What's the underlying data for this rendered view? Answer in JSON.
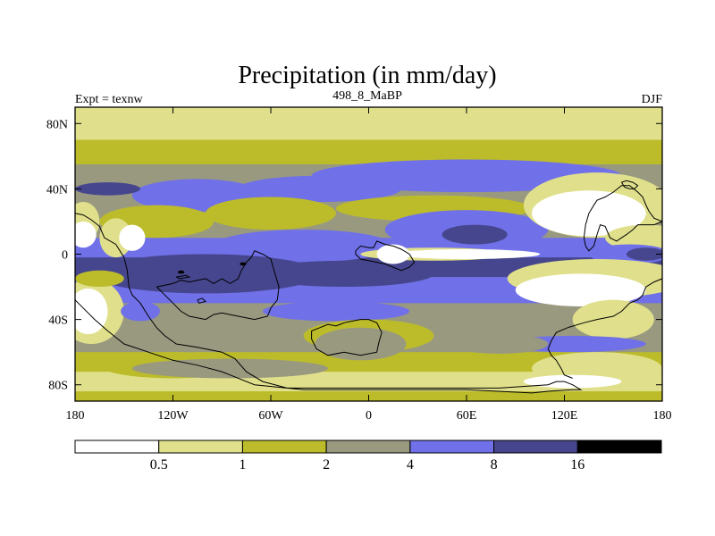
{
  "chart_data": {
    "type": "heatmap",
    "title": "Precipitation (in mm/day)",
    "subtitle_left": "Expt = texnw",
    "subtitle_center": "498_8_MaBP",
    "subtitle_right": "DJF",
    "units": "mm/day",
    "xlim": [
      -180,
      180
    ],
    "ylim": [
      -90,
      90
    ],
    "x_ticks": [
      {
        "value": -180,
        "label": "180"
      },
      {
        "value": -120,
        "label": "120W"
      },
      {
        "value": -60,
        "label": "60W"
      },
      {
        "value": 0,
        "label": "0"
      },
      {
        "value": 60,
        "label": "60E"
      },
      {
        "value": 120,
        "label": "120E"
      },
      {
        "value": 180,
        "label": "180"
      }
    ],
    "y_ticks": [
      {
        "value": 80,
        "label": "80N"
      },
      {
        "value": 40,
        "label": "40N"
      },
      {
        "value": 0,
        "label": "0"
      },
      {
        "value": -40,
        "label": "40S"
      },
      {
        "value": -80,
        "label": "80S"
      }
    ],
    "colorbar": {
      "levels": [
        "0.5",
        "1",
        "2",
        "4",
        "8",
        "16"
      ],
      "colors": [
        "#ffffff",
        "#e0e08c",
        "#bcbc2a",
        "#999980",
        "#7070e8",
        "#46468e",
        "#000000"
      ]
    },
    "bands": [
      {
        "lat_min": 76,
        "lat_max": 90,
        "level": 1
      },
      {
        "lat_min": 70,
        "lat_max": 76,
        "level": 1
      },
      {
        "lat_min": 55,
        "lat_max": 70,
        "level": 2
      },
      {
        "lat_min": 46,
        "lat_max": 55,
        "level": 3
      },
      {
        "lat_min": 26,
        "lat_max": 46,
        "level": 3
      },
      {
        "lat_min": 20,
        "lat_max": 26,
        "level": 3
      },
      {
        "lat_min": 10,
        "lat_max": 20,
        "level": 3
      },
      {
        "lat_min": -2,
        "lat_max": 10,
        "level": 4
      },
      {
        "lat_min": -14,
        "lat_max": -2,
        "level": 5
      },
      {
        "lat_min": -30,
        "lat_max": -14,
        "level": 4
      },
      {
        "lat_min": -40,
        "lat_max": -30,
        "level": 3
      },
      {
        "lat_min": -60,
        "lat_max": -40,
        "level": 3
      },
      {
        "lat_min": -72,
        "lat_max": -60,
        "level": 2
      },
      {
        "lat_min": -84,
        "lat_max": -72,
        "level": 1
      },
      {
        "lat_min": -90,
        "lat_max": -84,
        "level": 2
      }
    ],
    "blobs": [
      {
        "lon": -105,
        "lat": 36,
        "rx": 40,
        "ry": 10,
        "level": 4
      },
      {
        "lon": -160,
        "lat": 40,
        "rx": 20,
        "ry": 4,
        "level": 5
      },
      {
        "lon": -30,
        "lat": 40,
        "rx": 50,
        "ry": 8,
        "level": 4
      },
      {
        "lon": 60,
        "lat": 48,
        "rx": 95,
        "ry": 10,
        "level": 4
      },
      {
        "lon": -130,
        "lat": 20,
        "rx": 35,
        "ry": 10,
        "level": 2
      },
      {
        "lon": -60,
        "lat": 25,
        "rx": 40,
        "ry": 10,
        "level": 2
      },
      {
        "lon": 40,
        "lat": 28,
        "rx": 60,
        "ry": 8,
        "level": 2
      },
      {
        "lon": -40,
        "lat": 5,
        "rx": 55,
        "ry": 10,
        "level": 4
      },
      {
        "lon": 60,
        "lat": 15,
        "rx": 50,
        "ry": 12,
        "level": 4
      },
      {
        "lon": 140,
        "lat": 30,
        "rx": 45,
        "ry": 20,
        "level": 1
      },
      {
        "lon": 135,
        "lat": 25,
        "rx": 35,
        "ry": 14,
        "level": 0
      },
      {
        "lon": 170,
        "lat": 10,
        "rx": 25,
        "ry": 8,
        "level": 1
      },
      {
        "lon": -175,
        "lat": 20,
        "rx": 10,
        "ry": 12,
        "level": 1
      },
      {
        "lon": -155,
        "lat": 10,
        "rx": 10,
        "ry": 12,
        "level": 1
      },
      {
        "lon": -145,
        "lat": 10,
        "rx": 8,
        "ry": 8,
        "level": 0
      },
      {
        "lon": -175,
        "lat": 12,
        "rx": 8,
        "ry": 8,
        "level": 0
      },
      {
        "lon": 65,
        "lat": 12,
        "rx": 20,
        "ry": 6,
        "level": 5
      },
      {
        "lon": 160,
        "lat": 0,
        "rx": 25,
        "ry": 6,
        "level": 4
      },
      {
        "lon": 170,
        "lat": 0,
        "rx": 12,
        "ry": 4,
        "level": 5
      },
      {
        "lon": -100,
        "lat": -12,
        "rx": 70,
        "ry": 12,
        "level": 5
      },
      {
        "lon": -15,
        "lat": -12,
        "rx": 55,
        "ry": 8,
        "level": 5
      },
      {
        "lon": 40,
        "lat": 0,
        "rx": 45,
        "ry": 4,
        "level": 1
      },
      {
        "lon": 60,
        "lat": 0,
        "rx": 45,
        "ry": 3,
        "level": 0
      },
      {
        "lon": 15,
        "lat": 0,
        "rx": 10,
        "ry": 6,
        "level": 0
      },
      {
        "lon": 140,
        "lat": -15,
        "rx": 55,
        "ry": 12,
        "level": 1
      },
      {
        "lon": 130,
        "lat": -22,
        "rx": 40,
        "ry": 10,
        "level": 0
      },
      {
        "lon": 150,
        "lat": -40,
        "rx": 25,
        "ry": 12,
        "level": 1
      },
      {
        "lon": 125,
        "lat": -55,
        "rx": 45,
        "ry": 5,
        "level": 4
      },
      {
        "lon": 140,
        "lat": -70,
        "rx": 40,
        "ry": 10,
        "level": 1
      },
      {
        "lon": -170,
        "lat": -35,
        "rx": 20,
        "ry": 20,
        "level": 1
      },
      {
        "lon": -172,
        "lat": -35,
        "rx": 12,
        "ry": 14,
        "level": 0
      },
      {
        "lon": -165,
        "lat": -15,
        "rx": 15,
        "ry": 5,
        "level": 2
      },
      {
        "lon": -140,
        "lat": -35,
        "rx": 12,
        "ry": 6,
        "level": 4
      },
      {
        "lon": -110,
        "lat": -50,
        "rx": 25,
        "ry": 10,
        "level": 3
      },
      {
        "lon": -120,
        "lat": -68,
        "rx": 45,
        "ry": 8,
        "level": 2
      },
      {
        "lon": -20,
        "lat": -35,
        "rx": 45,
        "ry": 6,
        "level": 4
      },
      {
        "lon": 0,
        "lat": -50,
        "rx": 40,
        "ry": 10,
        "level": 2
      },
      {
        "lon": -5,
        "lat": -55,
        "rx": 28,
        "ry": 10,
        "level": 3
      },
      {
        "lon": -85,
        "lat": -70,
        "rx": 60,
        "ry": 6,
        "level": 3
      },
      {
        "lon": 80,
        "lat": -55,
        "rx": 30,
        "ry": 6,
        "level": 3
      },
      {
        "lon": 125,
        "lat": -78,
        "rx": 30,
        "ry": 4,
        "level": 0
      },
      {
        "lon": -115,
        "lat": -11,
        "rx": 2,
        "ry": 1,
        "level": 6
      },
      {
        "lon": -77,
        "lat": -6,
        "rx": 2,
        "ry": 1,
        "level": 6
      }
    ],
    "coastlines": [
      [
        [
          -180,
          25
        ],
        [
          -175,
          24
        ],
        [
          -170,
          21
        ],
        [
          -165,
          17
        ],
        [
          -162,
          10
        ],
        [
          -155,
          6
        ],
        [
          -150,
          -2
        ],
        [
          -148,
          -10
        ],
        [
          -147,
          -20
        ],
        [
          -145,
          -25
        ],
        [
          -140,
          -30
        ],
        [
          -135,
          -38
        ],
        [
          -130,
          -45
        ],
        [
          -125,
          -50
        ],
        [
          -118,
          -55
        ],
        [
          -105,
          -57
        ],
        [
          -90,
          -60
        ],
        [
          -82,
          -64
        ],
        [
          -75,
          -72
        ],
        [
          -65,
          -78
        ],
        [
          -50,
          -82
        ],
        [
          -20,
          -82
        ],
        [
          10,
          -82
        ],
        [
          60,
          -82
        ],
        [
          80,
          -82
        ],
        [
          110,
          -80
        ],
        [
          115,
          -78
        ],
        [
          120,
          -78
        ],
        [
          125,
          -80
        ],
        [
          130,
          -83
        ],
        [
          125,
          -83
        ],
        [
          110,
          -84
        ],
        [
          100,
          -85
        ],
        [
          60,
          -83
        ],
        [
          -40,
          -83
        ],
        [
          -70,
          -80
        ],
        [
          -90,
          -72
        ],
        [
          -105,
          -68
        ],
        [
          -120,
          -65
        ],
        [
          -135,
          -60
        ],
        [
          -150,
          -55
        ],
        [
          -160,
          -47
        ],
        [
          -168,
          -40
        ],
        [
          -175,
          -33
        ],
        [
          -180,
          -28
        ]
      ],
      [
        [
          -130,
          -20
        ],
        [
          -120,
          -18
        ],
        [
          -115,
          -16
        ],
        [
          -110,
          -17
        ],
        [
          -100,
          -15
        ],
        [
          -95,
          -18
        ],
        [
          -90,
          -15
        ],
        [
          -85,
          -18
        ],
        [
          -80,
          -15
        ],
        [
          -78,
          -10
        ],
        [
          -75,
          -5
        ],
        [
          -72,
          -2
        ],
        [
          -70,
          2
        ],
        [
          -65,
          0
        ],
        [
          -60,
          -3
        ],
        [
          -58,
          -10
        ],
        [
          -55,
          -20
        ],
        [
          -56,
          -28
        ],
        [
          -60,
          -33
        ],
        [
          -62,
          -38
        ],
        [
          -70,
          -40
        ],
        [
          -80,
          -38
        ],
        [
          -90,
          -36
        ],
        [
          -95,
          -37
        ],
        [
          -100,
          -40
        ],
        [
          -110,
          -38
        ],
        [
          -115,
          -35
        ],
        [
          -120,
          -30
        ],
        [
          -125,
          -25
        ],
        [
          -130,
          -20
        ]
      ],
      [
        [
          -35,
          -47
        ],
        [
          -30,
          -45
        ],
        [
          -25,
          -43
        ],
        [
          -20,
          -44
        ],
        [
          -15,
          -42
        ],
        [
          -10,
          -41
        ],
        [
          -5,
          -40
        ],
        [
          0,
          -40
        ],
        [
          5,
          -42
        ],
        [
          8,
          -48
        ],
        [
          6,
          -55
        ],
        [
          5,
          -60
        ],
        [
          -5,
          -62
        ],
        [
          -15,
          -60
        ],
        [
          -25,
          -62
        ],
        [
          -32,
          -58
        ],
        [
          -35,
          -52
        ],
        [
          -35,
          -47
        ]
      ],
      [
        [
          -8,
          2
        ],
        [
          -5,
          5
        ],
        [
          0,
          4
        ],
        [
          3,
          4
        ],
        [
          5,
          8
        ],
        [
          10,
          6
        ],
        [
          15,
          5
        ],
        [
          20,
          3
        ],
        [
          25,
          0
        ],
        [
          28,
          -5
        ],
        [
          25,
          -8
        ],
        [
          20,
          -10
        ],
        [
          15,
          -8
        ],
        [
          10,
          -6
        ],
        [
          5,
          -5
        ],
        [
          0,
          -4
        ],
        [
          -5,
          -3
        ],
        [
          -8,
          0
        ],
        [
          -8,
          2
        ]
      ],
      [
        [
          180,
          20
        ],
        [
          175,
          22
        ],
        [
          172,
          26
        ],
        [
          170,
          30
        ],
        [
          168,
          35
        ],
        [
          165,
          38
        ],
        [
          160,
          42
        ],
        [
          155,
          42
        ],
        [
          150,
          38
        ],
        [
          145,
          35
        ],
        [
          140,
          33
        ],
        [
          138,
          30
        ],
        [
          135,
          25
        ],
        [
          133,
          18
        ],
        [
          132,
          10
        ],
        [
          133,
          5
        ],
        [
          135,
          2
        ],
        [
          138,
          5
        ],
        [
          140,
          12
        ],
        [
          142,
          18
        ],
        [
          145,
          17
        ],
        [
          148,
          10
        ],
        [
          152,
          8
        ],
        [
          155,
          10
        ],
        [
          158,
          12
        ],
        [
          162,
          15
        ],
        [
          165,
          18
        ],
        [
          170,
          18
        ],
        [
          175,
          18
        ],
        [
          180,
          20
        ]
      ],
      [
        [
          180,
          -15
        ],
        [
          175,
          -17
        ],
        [
          170,
          -20
        ],
        [
          168,
          -25
        ],
        [
          165,
          -28
        ],
        [
          160,
          -30
        ],
        [
          155,
          -35
        ],
        [
          150,
          -38
        ],
        [
          140,
          -40
        ],
        [
          132,
          -42
        ],
        [
          122,
          -45
        ],
        [
          115,
          -48
        ],
        [
          112,
          -53
        ],
        [
          110,
          -58
        ],
        [
          112,
          -62
        ],
        [
          115,
          -65
        ],
        [
          118,
          -70
        ],
        [
          120,
          -74
        ],
        [
          125,
          -76
        ]
      ],
      [
        [
          155,
          44
        ],
        [
          158,
          45
        ],
        [
          162,
          44
        ],
        [
          165,
          42
        ],
        [
          163,
          40
        ],
        [
          160,
          40
        ],
        [
          157,
          41
        ],
        [
          155,
          44
        ]
      ],
      [
        [
          -118,
          -14
        ],
        [
          -112,
          -13
        ],
        [
          -110,
          -14
        ],
        [
          -116,
          -15
        ],
        [
          -118,
          -14
        ]
      ],
      [
        [
          -105,
          -28
        ],
        [
          -102,
          -27
        ],
        [
          -100,
          -29
        ],
        [
          -104,
          -30
        ],
        [
          -105,
          -28
        ]
      ]
    ]
  }
}
